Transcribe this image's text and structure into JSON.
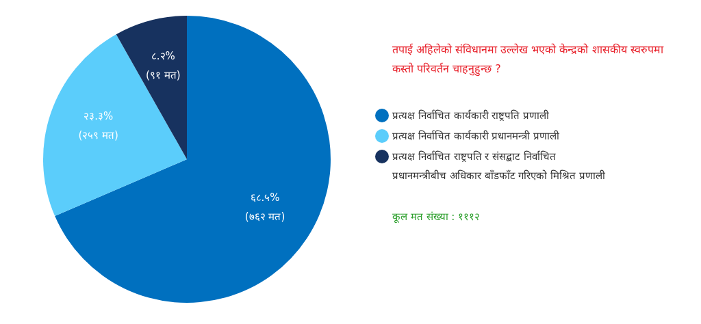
{
  "chart_data": {
    "type": "pie",
    "title": "तपाई अहिलेको संविधानमा उल्लेख भएको केन्द्रको शासकीय स्वरुपमा कस्तो परिवर्तन चाहनुहुन्छ ?",
    "categories": [
      "प्रत्यक्ष निर्वाचित कार्यकारी राष्ट्रपति प्रणाली",
      "प्रत्यक्ष निर्वाचित कार्यकारी प्रधानमन्त्री प्रणाली",
      "प्रत्यक्ष निर्वाचित राष्ट्रपति र संसद्बाट निर्वाचित प्रधानमन्त्रीबीच अधिकार बाँडफाँट गरिएको मिश्रित प्रणाली"
    ],
    "values": [
      762,
      259,
      91
    ],
    "value_labels": [
      "६८.५%\n(७६२ मत)",
      "२३.३%\n(२५९ मत)",
      "८.२%\n(९१ मत)"
    ],
    "colors": [
      "#0070bf",
      "#5bcdfb",
      "#17325f"
    ],
    "legend": "right",
    "annotations": [
      "कूल मत संख्या : १११२"
    ]
  }
}
